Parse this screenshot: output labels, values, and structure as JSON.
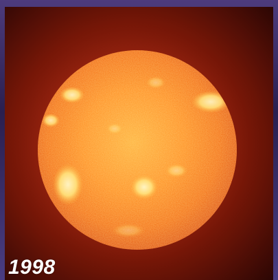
{
  "caption": {
    "year": "1998"
  },
  "image": {
    "subject-icon": "sun-disk",
    "colors": {
      "background": "#4a3d82",
      "corona": "#a82a14",
      "disk": "#ff8f1f",
      "highlight": "#fff0a8"
    }
  }
}
